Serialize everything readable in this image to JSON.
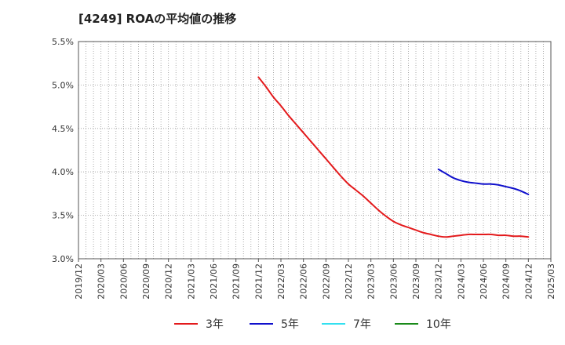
{
  "chart_data": {
    "type": "line",
    "title": "[4249]  ROAの平均値の推移",
    "x_categories": [
      "2019/12",
      "2020/03",
      "2020/06",
      "2020/09",
      "2020/12",
      "2021/03",
      "2021/06",
      "2021/09",
      "2021/12",
      "2022/03",
      "2022/06",
      "2022/09",
      "2022/12",
      "2023/03",
      "2023/06",
      "2023/09",
      "2023/12",
      "2024/03",
      "2024/06",
      "2024/09",
      "2024/12",
      "2025/03"
    ],
    "y_ticks": [
      "3.0%",
      "3.5%",
      "4.0%",
      "4.5%",
      "5.0%",
      "5.5%"
    ],
    "ylim": [
      3.0,
      5.5
    ],
    "grid": true,
    "legend_position": "bottom",
    "colors": {
      "3年": "#e31a1c",
      "5年": "#1010cc",
      "7年": "#33e0f0",
      "10年": "#1a8a1a"
    },
    "series": [
      {
        "name": "3年",
        "x": [
          "2021/12",
          "2022/01",
          "2022/02",
          "2022/03",
          "2022/04",
          "2022/05",
          "2022/06",
          "2022/07",
          "2022/08",
          "2022/09",
          "2022/10",
          "2022/11",
          "2022/12",
          "2023/01",
          "2023/02",
          "2023/03",
          "2023/04",
          "2023/05",
          "2023/06",
          "2023/07",
          "2023/08",
          "2023/09",
          "2023/10",
          "2023/11",
          "2023/12",
          "2024/01",
          "2024/02",
          "2024/03",
          "2024/04",
          "2024/05",
          "2024/06",
          "2024/07",
          "2024/08",
          "2024/09",
          "2024/10",
          "2024/11",
          "2024/12"
        ],
        "values": [
          5.09,
          4.98,
          4.86,
          4.76,
          4.65,
          4.55,
          4.45,
          4.35,
          4.25,
          4.15,
          4.05,
          3.95,
          3.86,
          3.79,
          3.72,
          3.64,
          3.56,
          3.49,
          3.43,
          3.39,
          3.36,
          3.33,
          3.3,
          3.28,
          3.26,
          3.25,
          3.26,
          3.27,
          3.28,
          3.28,
          3.28,
          3.28,
          3.27,
          3.27,
          3.26,
          3.26,
          3.25
        ]
      },
      {
        "name": "5年",
        "x": [
          "2023/12",
          "2024/01",
          "2024/02",
          "2024/03",
          "2024/04",
          "2024/05",
          "2024/06",
          "2024/07",
          "2024/08",
          "2024/09",
          "2024/10",
          "2024/11",
          "2024/12"
        ],
        "values": [
          4.03,
          3.98,
          3.93,
          3.9,
          3.88,
          3.87,
          3.86,
          3.86,
          3.85,
          3.83,
          3.81,
          3.78,
          3.74
        ]
      },
      {
        "name": "7年",
        "x": [],
        "values": []
      },
      {
        "name": "10年",
        "x": [],
        "values": []
      }
    ]
  }
}
